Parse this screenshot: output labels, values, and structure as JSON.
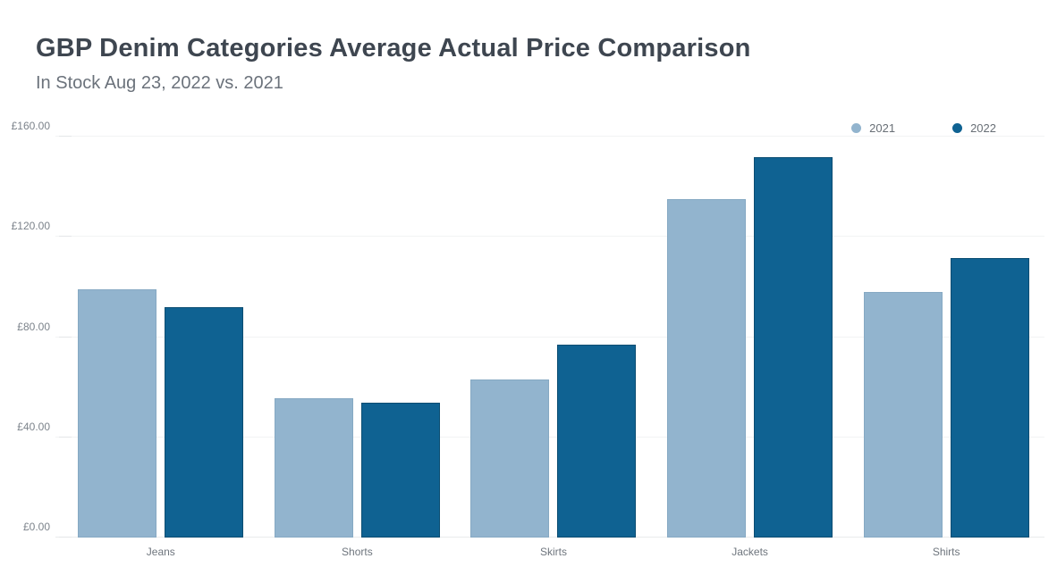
{
  "title": "GBP Denim Categories Average Actual Price Comparison",
  "subtitle": "In Stock Aug 23, 2022 vs. 2021",
  "colors": {
    "series_2021": "#92b4ce",
    "series_2022": "#0f6292",
    "title_text": "#3e4650",
    "subtitle_text": "#6b727b",
    "axis_text": "#7c838b",
    "gridline": "#f2f3f4"
  },
  "legend": {
    "position": "top-right",
    "items": [
      {
        "label": "2021",
        "color": "#92b4ce"
      },
      {
        "label": "2022",
        "color": "#0f6292"
      }
    ]
  },
  "chart_data": {
    "type": "bar",
    "title": "GBP Denim Categories Average Actual Price Comparison",
    "subtitle": "In Stock Aug 23, 2022 vs. 2021",
    "categories": [
      "Jeans",
      "Shorts",
      "Skirts",
      "Jackets",
      "Shirts"
    ],
    "series": [
      {
        "name": "2021",
        "color": "#92b4ce",
        "values": [
          99,
          55.5,
          63,
          135,
          98
        ]
      },
      {
        "name": "2022",
        "color": "#0f6292",
        "values": [
          92,
          54,
          77,
          152,
          111.5
        ]
      }
    ],
    "xlabel": "",
    "ylabel": "",
    "ylim": [
      0,
      160
    ],
    "currency_symbol": "£",
    "yticks": [
      {
        "value": 0,
        "label": "£0.00"
      },
      {
        "value": 40,
        "label": "£40.00"
      },
      {
        "value": 80,
        "label": "£80.00"
      },
      {
        "value": 120,
        "label": "£120.00"
      },
      {
        "value": 160,
        "label": "£160.00"
      }
    ],
    "grid": "horizontal",
    "legend_position": "top-right"
  }
}
